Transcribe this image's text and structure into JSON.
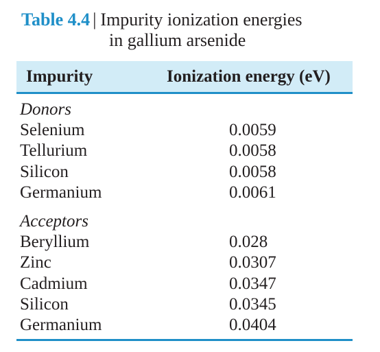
{
  "caption": {
    "label": "Table 4.4",
    "separator": "|",
    "title_line1": "Impurity ionization energies",
    "title_line2": "in gallium arsenide"
  },
  "columns": [
    "Impurity",
    "Ionization energy (eV)"
  ],
  "groups": [
    {
      "name": "Donors",
      "rows": [
        {
          "impurity": "Selenium",
          "energy": "0.0059"
        },
        {
          "impurity": "Tellurium",
          "energy": "0.0058"
        },
        {
          "impurity": "Silicon",
          "energy": "0.0058"
        },
        {
          "impurity": "Germanium",
          "energy": "0.0061"
        }
      ]
    },
    {
      "name": "Acceptors",
      "rows": [
        {
          "impurity": "Beryllium",
          "energy": "0.028"
        },
        {
          "impurity": "Zinc",
          "energy": "0.0307"
        },
        {
          "impurity": "Cadmium",
          "energy": "0.0347"
        },
        {
          "impurity": "Silicon",
          "energy": "0.0345"
        },
        {
          "impurity": "Germanium",
          "energy": "0.0404"
        }
      ]
    }
  ],
  "colors": {
    "accent": "#1f8fc8",
    "header_bg": "#d2ecf7",
    "text": "#231f20"
  }
}
